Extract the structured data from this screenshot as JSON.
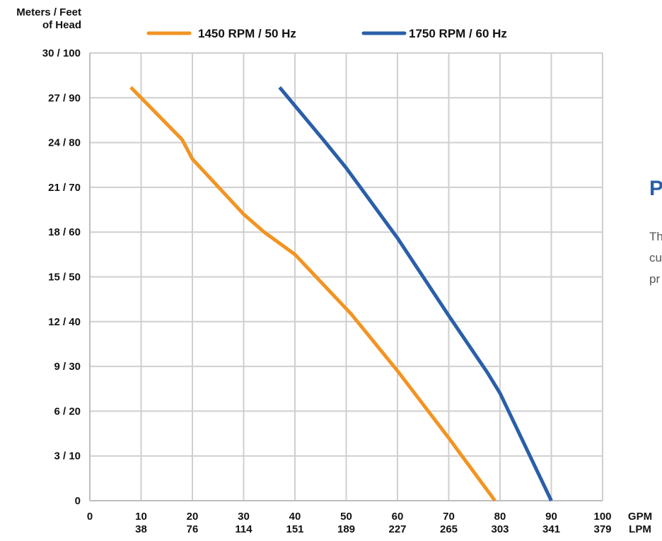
{
  "chart_data": {
    "type": "line",
    "ylabel_lines": [
      "Meters / Feet",
      "of Head"
    ],
    "x_units": [
      "GPM",
      "LPM"
    ],
    "x_ticks": [
      {
        "gpm": 0,
        "lpm": ""
      },
      {
        "gpm": 10,
        "lpm": "38"
      },
      {
        "gpm": 20,
        "lpm": "76"
      },
      {
        "gpm": 30,
        "lpm": "114"
      },
      {
        "gpm": 40,
        "lpm": "151"
      },
      {
        "gpm": 50,
        "lpm": "189"
      },
      {
        "gpm": 60,
        "lpm": "227"
      },
      {
        "gpm": 70,
        "lpm": "265"
      },
      {
        "gpm": 80,
        "lpm": "303"
      },
      {
        "gpm": 90,
        "lpm": "341"
      },
      {
        "gpm": 100,
        "lpm": "379"
      }
    ],
    "y_ticks": [
      {
        "m": 0,
        "label": "0"
      },
      {
        "m": 3,
        "label": "3 / 10"
      },
      {
        "m": 6,
        "label": "6 / 20"
      },
      {
        "m": 9,
        "label": "9 / 30"
      },
      {
        "m": 12,
        "label": "12 / 40"
      },
      {
        "m": 15,
        "label": "15 / 50"
      },
      {
        "m": 18,
        "label": "18 / 60"
      },
      {
        "m": 21,
        "label": "21 / 70"
      },
      {
        "m": 24,
        "label": "24 / 80"
      },
      {
        "m": 27,
        "label": "27 / 90"
      },
      {
        "m": 30,
        "label": "30 / 100"
      }
    ],
    "xlim": [
      0,
      100
    ],
    "ylim": [
      0,
      30
    ],
    "grid": true,
    "legend_position": "top",
    "series": [
      {
        "name": "1450 RPM / 50 Hz",
        "color": "#f29423",
        "points": [
          [
            8,
            27.7
          ],
          [
            18,
            24.2
          ],
          [
            20,
            22.9
          ],
          [
            30,
            19.2
          ],
          [
            34,
            18.0
          ],
          [
            40,
            16.5
          ],
          [
            51,
            12.5
          ],
          [
            60,
            8.7
          ],
          [
            70,
            4.2
          ],
          [
            79,
            0
          ]
        ]
      },
      {
        "name": "1750 RPM / 60 Hz",
        "color": "#2a5fa8",
        "points": [
          [
            37,
            27.7
          ],
          [
            45.5,
            24.2
          ],
          [
            50,
            22.3
          ],
          [
            60,
            17.6
          ],
          [
            70,
            12.4
          ],
          [
            77.5,
            8.6
          ],
          [
            80,
            7.2
          ],
          [
            90,
            0
          ]
        ]
      }
    ]
  },
  "side_panel": {
    "heading": "P",
    "text_lines": [
      "Th",
      "cu",
      "pr"
    ]
  }
}
